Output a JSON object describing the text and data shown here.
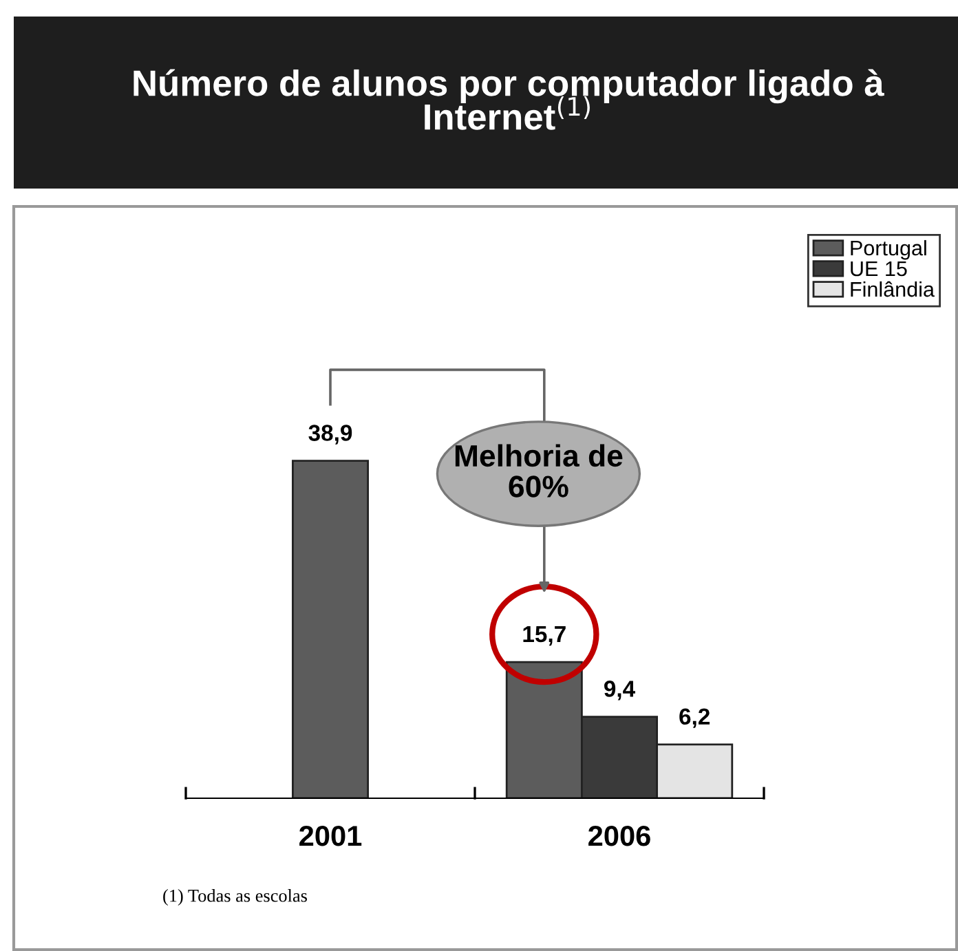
{
  "chart_data": {
    "type": "bar",
    "title": "Número de alunos por computador ligado à Internet$^{(1)}$",
    "categories": [
      "2001",
      "2006"
    ],
    "series": [
      {
        "name": "Portugal",
        "color": "#5c5c5c",
        "values": [
          38.9,
          15.7
        ],
        "value_labels": [
          "38,9",
          "15,7"
        ]
      },
      {
        "name": "UE 15",
        "color": "#3a3a3a",
        "values": [
          null,
          9.4
        ],
        "value_labels": [
          null,
          "9,4"
        ]
      },
      {
        "name": "Finlândia",
        "color": "#e4e4e4",
        "values": [
          null,
          6.2
        ],
        "value_labels": [
          null,
          "6,2"
        ]
      }
    ],
    "annotations": [
      "Melhoria de 60%",
      "(1) Todas as escolas"
    ],
    "legend": "top right"
  }
}
